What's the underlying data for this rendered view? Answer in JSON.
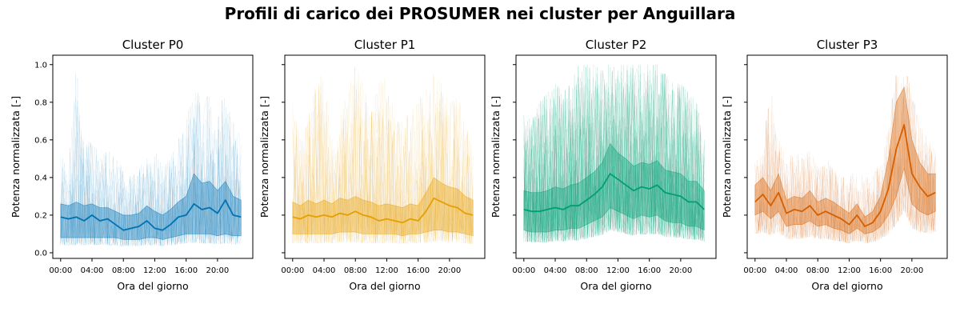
{
  "figure": {
    "title": "Profili di carico dei PROSUMER nei cluster per Anguillara"
  },
  "chart_data": [
    {
      "type": "line",
      "title": "Cluster P0",
      "xlabel": "Ora del giorno",
      "ylabel": "Potenza normalizzata [-]",
      "x_ticks": [
        "00:00",
        "04:00",
        "08:00",
        "12:00",
        "16:00",
        "20:00"
      ],
      "y_ticks": [
        "0.0",
        "0.2",
        "0.4",
        "0.6",
        "0.8",
        "1.0"
      ],
      "xlim": [
        -1,
        24.5
      ],
      "ylim": [
        -0.03,
        1.05
      ],
      "color": "#0072b2",
      "x_hours": [
        0,
        1,
        2,
        3,
        4,
        5,
        6,
        7,
        8,
        9,
        10,
        11,
        12,
        13,
        14,
        15,
        16,
        17,
        18,
        19,
        20,
        21,
        22,
        23
      ],
      "series": [
        {
          "role": "mean",
          "values": [
            0.19,
            0.18,
            0.19,
            0.17,
            0.2,
            0.17,
            0.18,
            0.15,
            0.12,
            0.13,
            0.14,
            0.17,
            0.13,
            0.12,
            0.15,
            0.19,
            0.2,
            0.26,
            0.23,
            0.24,
            0.21,
            0.28,
            0.2,
            0.19
          ]
        },
        {
          "role": "band_low",
          "values": [
            0.08,
            0.08,
            0.08,
            0.08,
            0.08,
            0.08,
            0.08,
            0.08,
            0.07,
            0.07,
            0.07,
            0.08,
            0.08,
            0.07,
            0.08,
            0.09,
            0.1,
            0.1,
            0.1,
            0.1,
            0.09,
            0.1,
            0.09,
            0.09
          ]
        },
        {
          "role": "band_high",
          "values": [
            0.26,
            0.25,
            0.27,
            0.25,
            0.26,
            0.24,
            0.24,
            0.22,
            0.2,
            0.2,
            0.21,
            0.25,
            0.22,
            0.2,
            0.23,
            0.27,
            0.3,
            0.42,
            0.37,
            0.38,
            0.33,
            0.38,
            0.3,
            0.28
          ]
        },
        {
          "role": "samples_max",
          "values": [
            0.6,
            0.45,
            1.0,
            0.55,
            0.62,
            0.5,
            0.55,
            0.5,
            0.45,
            0.4,
            0.45,
            0.5,
            0.55,
            0.45,
            0.5,
            0.6,
            0.7,
            0.9,
            0.8,
            0.85,
            0.7,
            0.9,
            0.75,
            0.6
          ]
        }
      ]
    },
    {
      "type": "line",
      "title": "Cluster P1",
      "xlabel": "Ora del giorno",
      "ylabel": "Potenza normalizzata [-]",
      "x_ticks": [
        "00:00",
        "04:00",
        "08:00",
        "12:00",
        "16:00",
        "20:00"
      ],
      "y_ticks": [
        "0.0",
        "0.2",
        "0.4",
        "0.6",
        "0.8",
        "1.0"
      ],
      "xlim": [
        -1,
        24.5
      ],
      "ylim": [
        -0.03,
        1.05
      ],
      "color": "#e69f00",
      "x_hours": [
        0,
        1,
        2,
        3,
        4,
        5,
        6,
        7,
        8,
        9,
        10,
        11,
        12,
        13,
        14,
        15,
        16,
        17,
        18,
        19,
        20,
        21,
        22,
        23
      ],
      "series": [
        {
          "role": "mean",
          "values": [
            0.19,
            0.18,
            0.2,
            0.19,
            0.2,
            0.19,
            0.21,
            0.2,
            0.22,
            0.2,
            0.19,
            0.17,
            0.18,
            0.17,
            0.16,
            0.18,
            0.17,
            0.22,
            0.29,
            0.27,
            0.25,
            0.24,
            0.21,
            0.2
          ]
        },
        {
          "role": "band_low",
          "values": [
            0.1,
            0.1,
            0.1,
            0.1,
            0.1,
            0.1,
            0.11,
            0.11,
            0.11,
            0.1,
            0.1,
            0.1,
            0.1,
            0.1,
            0.09,
            0.1,
            0.1,
            0.11,
            0.12,
            0.12,
            0.11,
            0.11,
            0.1,
            0.09
          ]
        },
        {
          "role": "band_high",
          "values": [
            0.27,
            0.25,
            0.28,
            0.26,
            0.28,
            0.26,
            0.29,
            0.28,
            0.3,
            0.28,
            0.27,
            0.25,
            0.26,
            0.25,
            0.24,
            0.26,
            0.25,
            0.32,
            0.4,
            0.37,
            0.35,
            0.34,
            0.3,
            0.28
          ]
        },
        {
          "role": "samples_max",
          "values": [
            0.8,
            0.6,
            0.7,
            1.0,
            0.9,
            0.6,
            0.7,
            0.85,
            1.0,
            0.9,
            0.8,
            0.9,
            1.0,
            0.7,
            0.7,
            0.75,
            0.8,
            0.9,
            0.95,
            0.9,
            0.8,
            0.85,
            0.7,
            0.6
          ]
        }
      ]
    },
    {
      "type": "line",
      "title": "Cluster P2",
      "xlabel": "Ora del giorno",
      "ylabel": "Potenza normalizzata [-]",
      "x_ticks": [
        "00:00",
        "04:00",
        "08:00",
        "12:00",
        "16:00",
        "20:00"
      ],
      "y_ticks": [
        "0.0",
        "0.2",
        "0.4",
        "0.6",
        "0.8",
        "1.0"
      ],
      "xlim": [
        -1,
        24.5
      ],
      "ylim": [
        -0.03,
        1.05
      ],
      "color": "#009e73",
      "x_hours": [
        0,
        1,
        2,
        3,
        4,
        5,
        6,
        7,
        8,
        9,
        10,
        11,
        12,
        13,
        14,
        15,
        16,
        17,
        18,
        19,
        20,
        21,
        22,
        23
      ],
      "series": [
        {
          "role": "mean",
          "values": [
            0.23,
            0.22,
            0.22,
            0.23,
            0.24,
            0.23,
            0.25,
            0.25,
            0.28,
            0.31,
            0.35,
            0.42,
            0.39,
            0.36,
            0.33,
            0.35,
            0.34,
            0.36,
            0.32,
            0.31,
            0.3,
            0.27,
            0.27,
            0.23
          ]
        },
        {
          "role": "band_low",
          "values": [
            0.12,
            0.11,
            0.11,
            0.11,
            0.12,
            0.12,
            0.13,
            0.13,
            0.15,
            0.17,
            0.19,
            0.24,
            0.22,
            0.2,
            0.18,
            0.2,
            0.19,
            0.2,
            0.17,
            0.16,
            0.16,
            0.14,
            0.14,
            0.12
          ]
        },
        {
          "role": "band_high",
          "values": [
            0.33,
            0.32,
            0.32,
            0.33,
            0.35,
            0.34,
            0.36,
            0.37,
            0.4,
            0.43,
            0.48,
            0.58,
            0.53,
            0.5,
            0.46,
            0.48,
            0.47,
            0.49,
            0.44,
            0.43,
            0.42,
            0.38,
            0.38,
            0.33
          ]
        },
        {
          "role": "samples_max",
          "values": [
            0.75,
            0.7,
            0.8,
            0.85,
            0.9,
            0.85,
            0.9,
            1.0,
            1.0,
            1.0,
            1.0,
            1.0,
            1.0,
            1.0,
            1.0,
            1.0,
            1.0,
            1.0,
            0.95,
            0.9,
            0.9,
            0.85,
            0.8,
            0.6
          ]
        }
      ]
    },
    {
      "type": "line",
      "title": "Cluster P3",
      "xlabel": "Ora del giorno",
      "ylabel": "Potenza normalizzata [-]",
      "x_ticks": [
        "00:00",
        "04:00",
        "08:00",
        "12:00",
        "16:00",
        "20:00"
      ],
      "y_ticks": [
        "0.0",
        "0.2",
        "0.4",
        "0.6",
        "0.8",
        "1.0"
      ],
      "xlim": [
        -1,
        24.5
      ],
      "ylim": [
        -0.03,
        1.05
      ],
      "color": "#d55e00",
      "x_hours": [
        0,
        1,
        2,
        3,
        4,
        5,
        6,
        7,
        8,
        9,
        10,
        11,
        12,
        13,
        14,
        15,
        16,
        17,
        18,
        19,
        20,
        21,
        22,
        23
      ],
      "series": [
        {
          "role": "mean",
          "values": [
            0.27,
            0.31,
            0.25,
            0.32,
            0.21,
            0.23,
            0.22,
            0.25,
            0.2,
            0.22,
            0.2,
            0.18,
            0.15,
            0.2,
            0.14,
            0.16,
            0.22,
            0.34,
            0.55,
            0.68,
            0.42,
            0.35,
            0.3,
            0.32
          ]
        },
        {
          "role": "band_low",
          "values": [
            0.2,
            0.22,
            0.18,
            0.22,
            0.14,
            0.15,
            0.15,
            0.17,
            0.14,
            0.15,
            0.13,
            0.12,
            0.1,
            0.13,
            0.1,
            0.11,
            0.14,
            0.2,
            0.3,
            0.45,
            0.26,
            0.22,
            0.2,
            0.22
          ]
        },
        {
          "role": "band_high",
          "values": [
            0.36,
            0.4,
            0.33,
            0.42,
            0.28,
            0.3,
            0.29,
            0.33,
            0.27,
            0.29,
            0.27,
            0.24,
            0.21,
            0.26,
            0.19,
            0.22,
            0.3,
            0.5,
            0.8,
            0.88,
            0.6,
            0.48,
            0.42,
            0.42
          ]
        },
        {
          "role": "samples_max",
          "values": [
            0.5,
            0.55,
            0.9,
            0.6,
            0.5,
            0.55,
            0.5,
            0.55,
            0.45,
            0.5,
            0.45,
            0.4,
            0.4,
            0.45,
            0.4,
            0.4,
            0.5,
            0.7,
            0.95,
            1.0,
            0.85,
            0.7,
            0.6,
            0.55
          ]
        }
      ]
    }
  ]
}
